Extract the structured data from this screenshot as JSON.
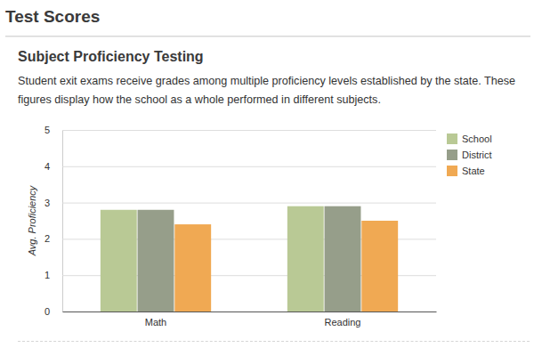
{
  "header": {
    "title": "Test Scores"
  },
  "chart_data": {
    "type": "bar",
    "title": "Subject Proficiency Testing",
    "subtitle": "Student exit exams receive grades among multiple proficiency levels established by the state. These figures display how the school as a whole performed in different subjects.",
    "ylabel": "Avg. Proficiency",
    "categories": [
      "Math",
      "Reading"
    ],
    "series": [
      {
        "name": "School",
        "color": "#b9c995",
        "values": [
          2.8,
          2.9
        ]
      },
      {
        "name": "District",
        "color": "#969e8a",
        "values": [
          2.8,
          2.9
        ]
      },
      {
        "name": "State",
        "color": "#f0a953",
        "values": [
          2.4,
          2.5
        ]
      }
    ],
    "ylim": [
      0,
      5
    ],
    "yticks": [
      0,
      1,
      2,
      3,
      4,
      5
    ],
    "grid": true,
    "legend": "right"
  }
}
